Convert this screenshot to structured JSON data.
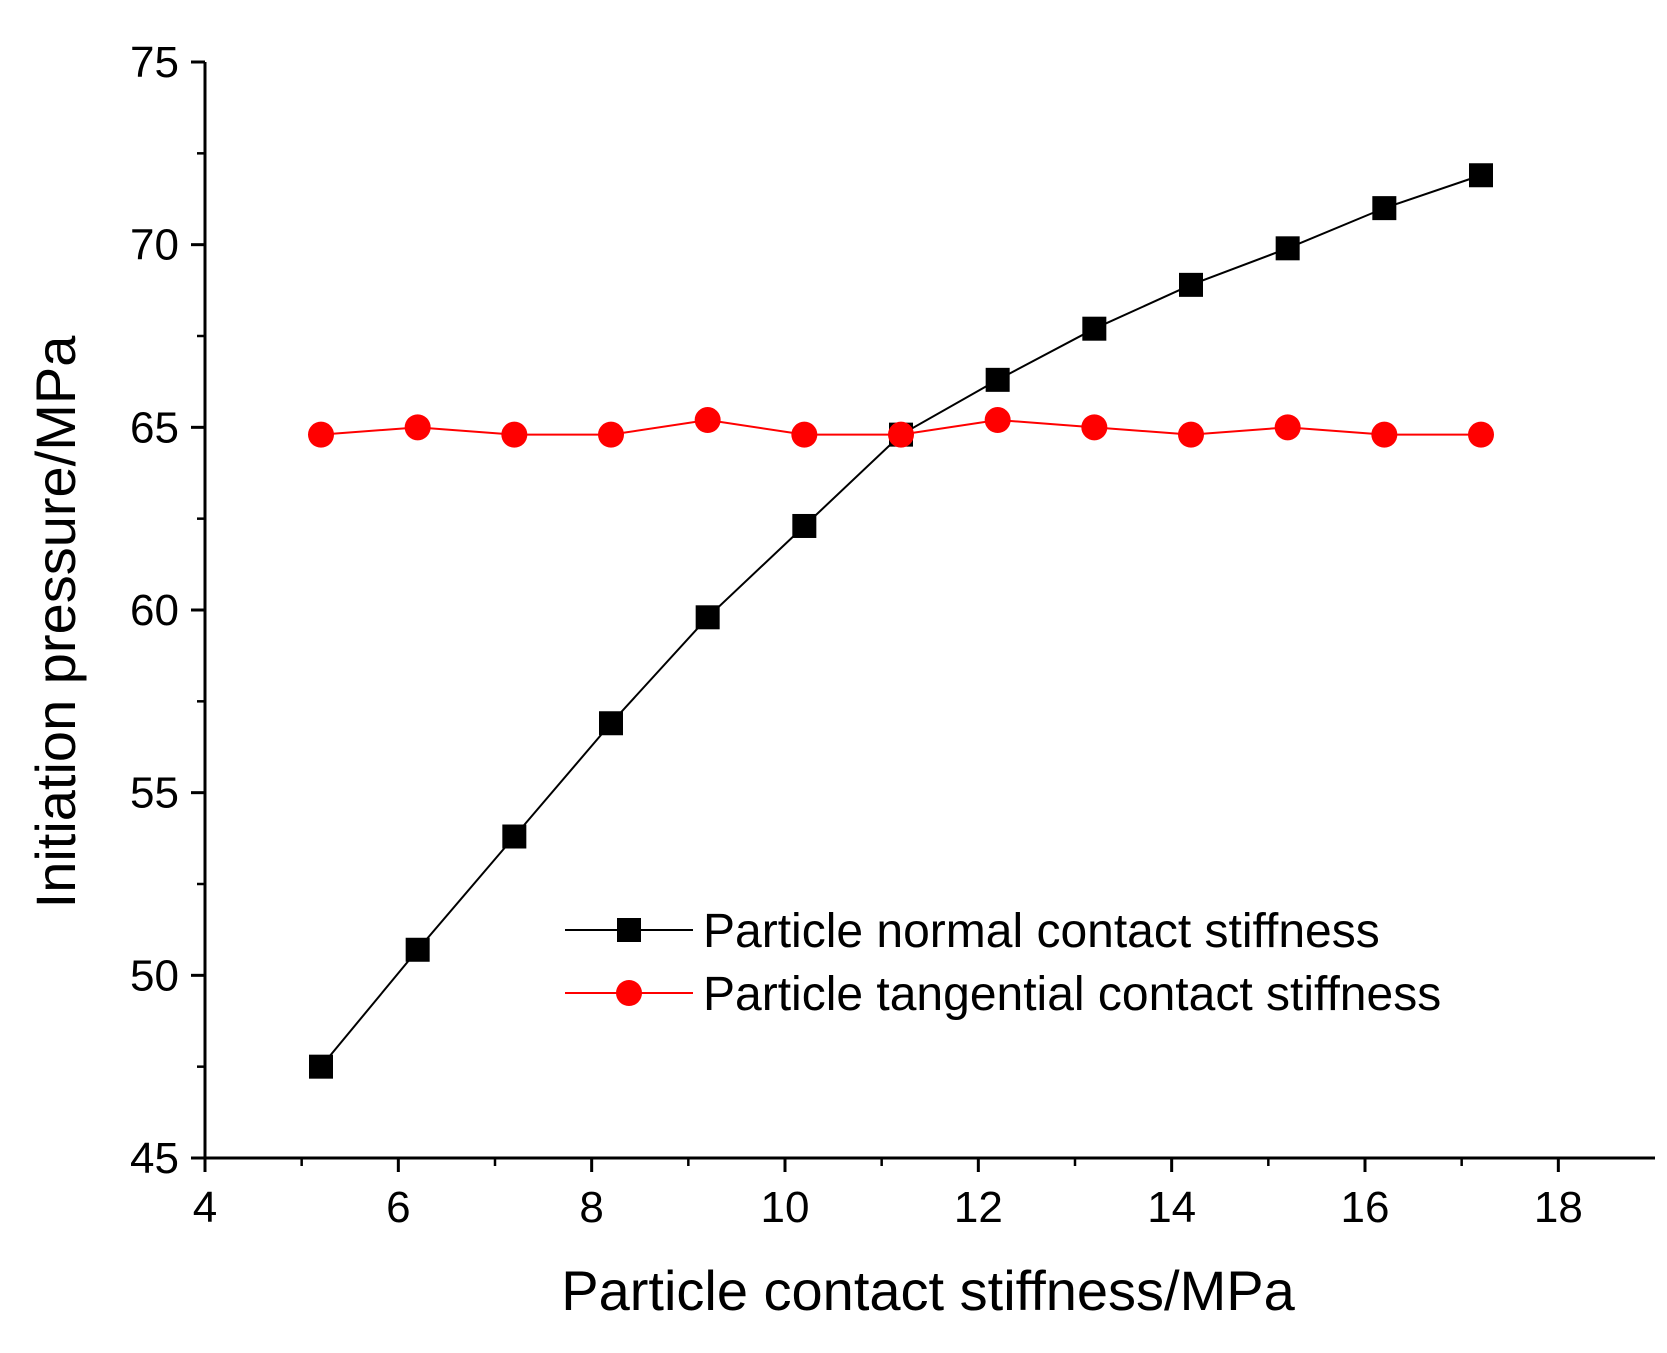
{
  "chart_data": {
    "type": "line",
    "title": "",
    "xlabel": "Particle contact stiffness/MPa",
    "ylabel": "Initiation pressure/MPa",
    "xlim": [
      4,
      19
    ],
    "ylim": [
      45,
      75
    ],
    "x_ticks": [
      4,
      6,
      8,
      10,
      12,
      14,
      16,
      18
    ],
    "x_tick_labels": [
      "4",
      "6",
      "8",
      "10",
      "12",
      "14",
      "16",
      "18"
    ],
    "y_ticks": [
      45,
      50,
      55,
      60,
      65,
      70,
      75
    ],
    "y_tick_labels": [
      "45",
      "50",
      "55",
      "60",
      "65",
      "70",
      "75"
    ],
    "grid": false,
    "legend_position": "lower-right",
    "x": [
      5.2,
      6.2,
      7.2,
      8.2,
      9.2,
      10.2,
      11.2,
      12.2,
      13.2,
      14.2,
      15.2,
      16.2,
      17.2
    ],
    "series": [
      {
        "name": "Particle normal contact stiffness",
        "color": "#000000",
        "marker": "square",
        "values": [
          47.5,
          50.7,
          53.8,
          56.9,
          59.8,
          62.3,
          64.8,
          66.3,
          67.7,
          68.9,
          69.9,
          71.0,
          71.9
        ]
      },
      {
        "name": "Particle tangential contact stiffness",
        "color": "#ff0000",
        "marker": "circle",
        "values": [
          64.8,
          65.0,
          64.8,
          64.8,
          65.2,
          64.8,
          64.8,
          65.2,
          65.0,
          64.8,
          65.0,
          64.8,
          64.8
        ]
      }
    ]
  }
}
